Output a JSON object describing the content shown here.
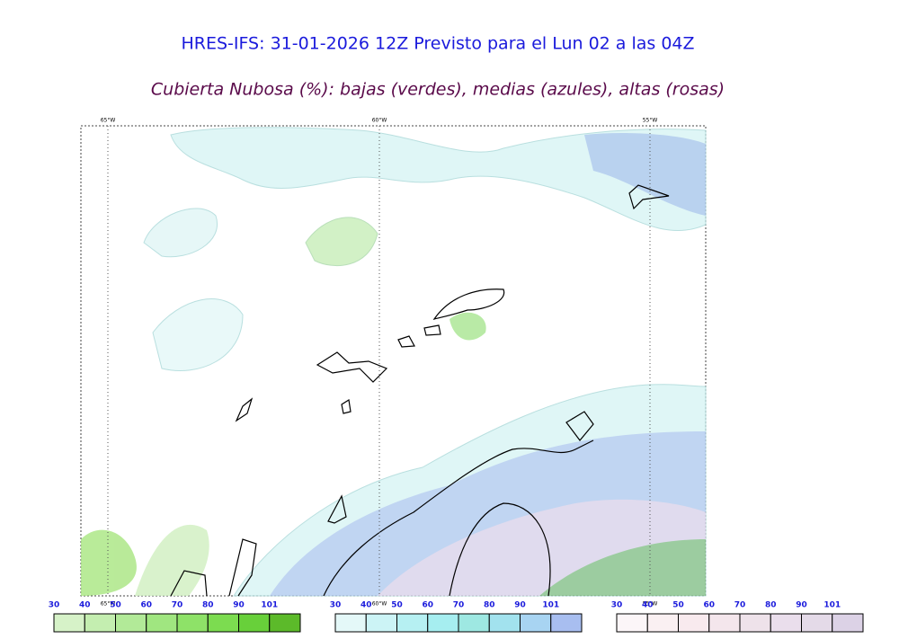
{
  "header": {
    "title": "HRES-IFS: 31-01-2026 12Z Previsto para el Lun 02 a las 04Z",
    "subtitle": "Cubierta Nubosa (%): bajas (verdes), medias (azules), altas (rosas)"
  },
  "map": {
    "longitude_labels": [
      "65°W",
      "60°W",
      "55°W"
    ]
  },
  "colorbars": [
    {
      "ticks": [
        "30",
        "40",
        "50",
        "60",
        "70",
        "80",
        "90",
        "101"
      ],
      "colors": [
        "#d6f2c8",
        "#c4eeb0",
        "#b2ea98",
        "#a0e680",
        "#8ee268",
        "#7cdc50",
        "#68d03a",
        "#5cba2a"
      ]
    },
    {
      "ticks": [
        "30",
        "40",
        "50",
        "60",
        "70",
        "80",
        "90",
        "101"
      ],
      "colors": [
        "#e4f8f8",
        "#ccf4f6",
        "#b6f0f2",
        "#a6eef0",
        "#9ee8e2",
        "#a2e2ee",
        "#a8d4f2",
        "#a8bef0"
      ]
    },
    {
      "ticks": [
        "30",
        "40",
        "50",
        "60",
        "70",
        "80",
        "90",
        "101"
      ],
      "colors": [
        "#fcf6f8",
        "#faf0f2",
        "#f8eaee",
        "#f4e6ec",
        "#eee2ea",
        "#eadeec",
        "#e4dae8",
        "#dcd2e6"
      ]
    }
  ]
}
